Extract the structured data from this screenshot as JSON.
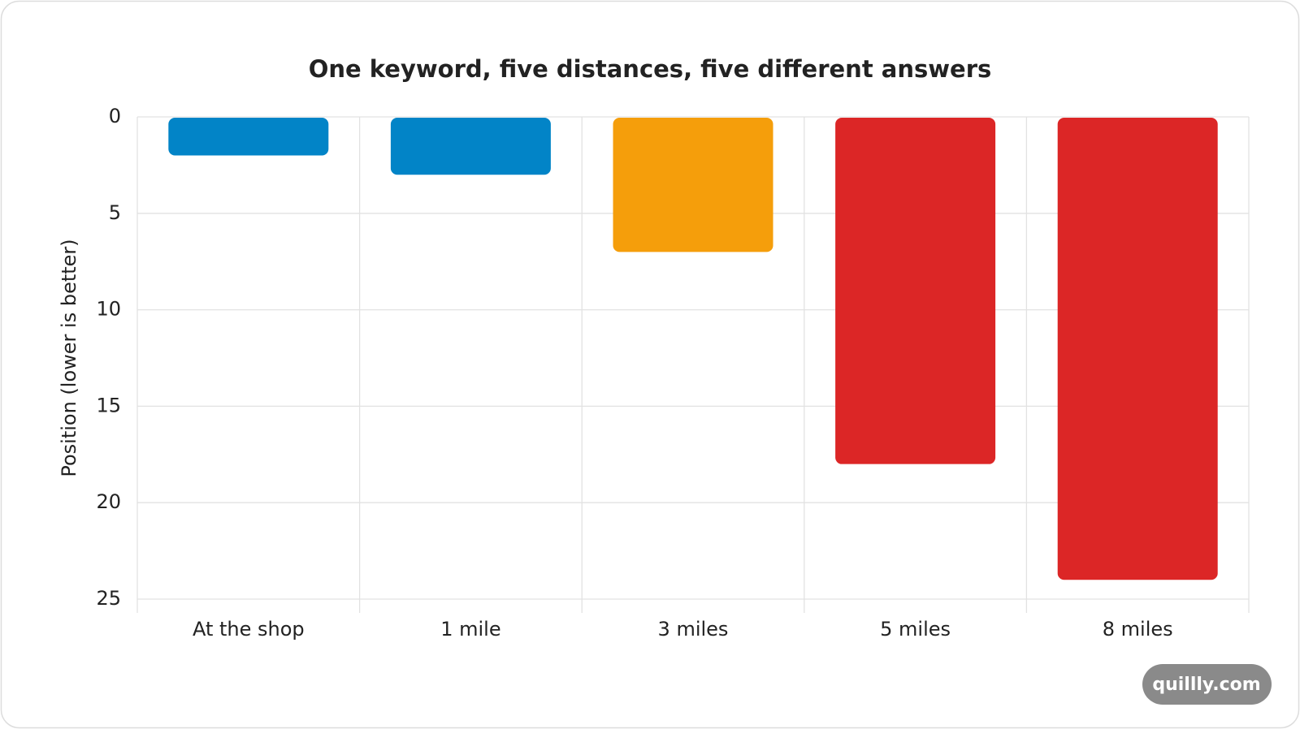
{
  "chart_data": {
    "type": "bar",
    "title": "One keyword, five distances, five different answers",
    "y_label": "Position (lower is better)",
    "categories": [
      "At the shop",
      "1 mile",
      "3 miles",
      "5 miles",
      "8 miles"
    ],
    "values": [
      2,
      3,
      7,
      18,
      24
    ],
    "colors": [
      "#0284c7",
      "#0284c7",
      "#f59e0b",
      "#dc2626",
      "#dc2626"
    ],
    "ylim": [
      0,
      25
    ],
    "yticks": [
      0,
      5,
      10,
      15,
      20,
      25
    ],
    "y_inverted": true,
    "grid": true,
    "watermark": "quillly.com"
  }
}
